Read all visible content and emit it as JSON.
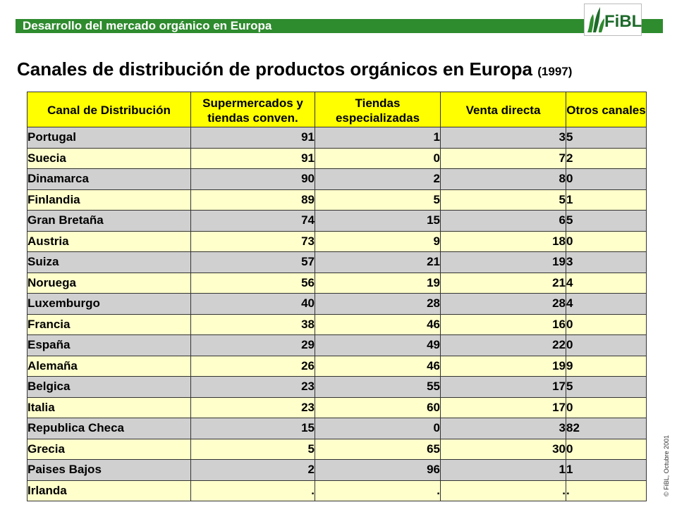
{
  "header": {
    "title": "Desarrollo del mercado orgánico en Europa",
    "logo_text": "FiBL",
    "accent_color": "#2e8b2e"
  },
  "headline": {
    "text": "Canales de distribución de productos orgánicos en Europa",
    "year": "(1997)"
  },
  "copyright": "© FiBL, Octubre 2001",
  "table": {
    "headers": [
      "Canal de Distribución",
      "Supermercados y tiendas conven.",
      "Tiendas especializadas",
      "Venta directa",
      "Otros canales"
    ],
    "rows": [
      [
        "Portugal",
        "91",
        "1",
        "3",
        "5"
      ],
      [
        "Suecia",
        "91",
        "0",
        "7",
        "2"
      ],
      [
        "Dinamarca",
        "90",
        "2",
        "8",
        "0"
      ],
      [
        "Finlandia",
        "89",
        "5",
        "5",
        "1"
      ],
      [
        "Gran Bretaña",
        "74",
        "15",
        "6",
        "5"
      ],
      [
        "Austria",
        "73",
        "9",
        "18",
        "0"
      ],
      [
        "Suiza",
        "57",
        "21",
        "19",
        "3"
      ],
      [
        "Noruega",
        "56",
        "19",
        "21",
        "4"
      ],
      [
        "Luxemburgo",
        "40",
        "28",
        "28",
        "4"
      ],
      [
        "Francia",
        "38",
        "46",
        "16",
        "0"
      ],
      [
        "España",
        "29",
        "49",
        "22",
        "0"
      ],
      [
        "Alemaña",
        "26",
        "46",
        "19",
        "9"
      ],
      [
        "Belgica",
        "23",
        "55",
        "17",
        "5"
      ],
      [
        "Italia",
        "23",
        "60",
        "17",
        "0"
      ],
      [
        "Republica Checa",
        "15",
        "0",
        "3",
        "82"
      ],
      [
        "Grecia",
        "5",
        "65",
        "30",
        "0"
      ],
      [
        "Paises Bajos",
        "2",
        "96",
        "1",
        "1"
      ],
      [
        "Irlanda",
        ".",
        ".",
        ".",
        "."
      ]
    ]
  }
}
